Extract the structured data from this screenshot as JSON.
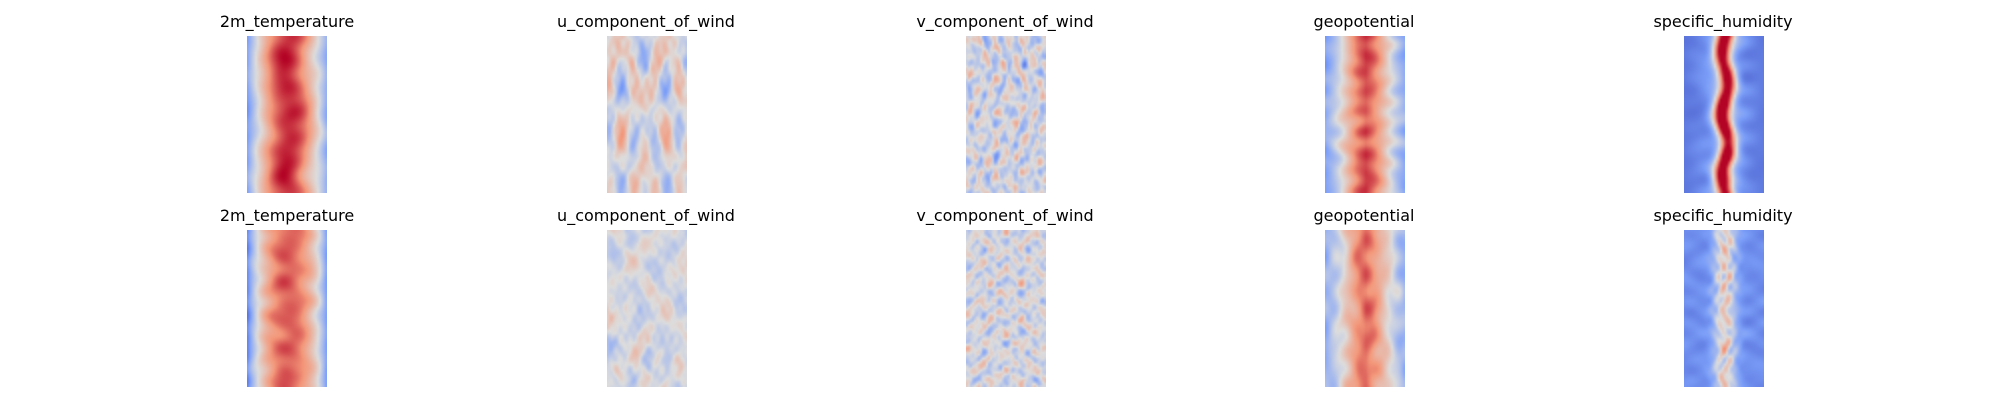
{
  "figure": {
    "rows": [
      {
        "panels": [
          {
            "title": "2m_temperature",
            "colormap": "coolwarm",
            "pattern": "warm-core",
            "seed": 11
          },
          {
            "title": "u_component_of_wind",
            "colormap": "coolwarm",
            "pattern": "wind-u",
            "seed": 23
          },
          {
            "title": "v_component_of_wind",
            "colormap": "coolwarm",
            "pattern": "wind-v",
            "seed": 37
          },
          {
            "title": "geopotential",
            "colormap": "coolwarm",
            "pattern": "geo",
            "seed": 41
          },
          {
            "title": "specific_humidity",
            "colormap": "coolwarm",
            "pattern": "humidity-sharp",
            "seed": 53
          }
        ]
      },
      {
        "panels": [
          {
            "title": "2m_temperature",
            "colormap": "coolwarm",
            "pattern": "warm-broad",
            "seed": 61
          },
          {
            "title": "u_component_of_wind",
            "colormap": "coolwarm",
            "pattern": "wind-u-soft",
            "seed": 73
          },
          {
            "title": "v_component_of_wind",
            "colormap": "coolwarm",
            "pattern": "wind-v-soft",
            "seed": 89
          },
          {
            "title": "geopotential",
            "colormap": "coolwarm",
            "pattern": "geo-2",
            "seed": 97
          },
          {
            "title": "specific_humidity",
            "colormap": "coolwarm",
            "pattern": "humidity-soft",
            "seed": 103
          }
        ]
      }
    ]
  }
}
